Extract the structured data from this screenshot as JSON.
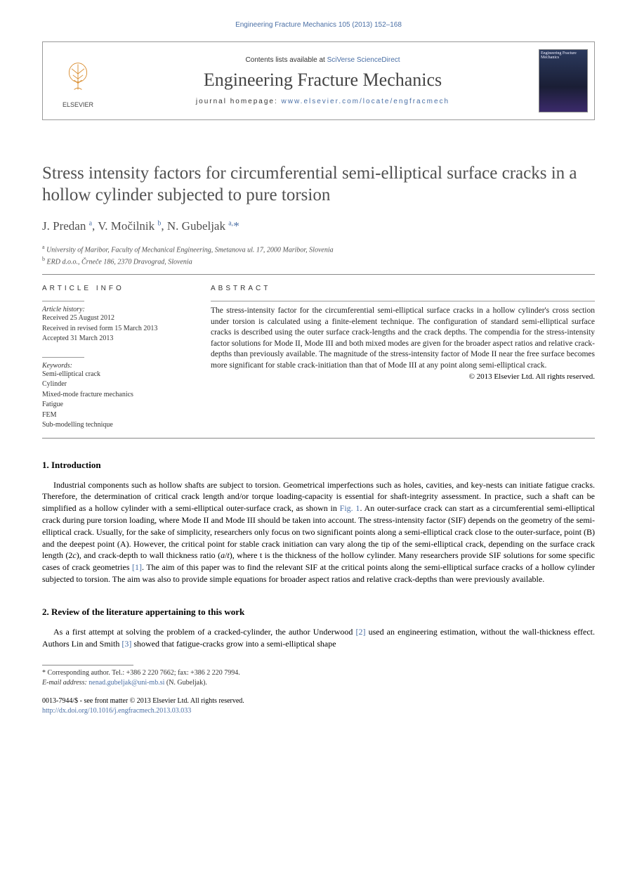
{
  "header": {
    "top_line": "Engineering Fracture Mechanics 105 (2013) 152–168",
    "contents_prefix": "Contents lists available at ",
    "contents_service": "SciVerse ScienceDirect",
    "journal_name": "Engineering Fracture Mechanics",
    "homepage_label": "journal homepage: ",
    "homepage_url": "www.elsevier.com/locate/engfracmech",
    "publisher_name": "ELSEVIER",
    "cover_small_title": "Engineering Fracture Mechanics"
  },
  "title": "Stress intensity factors for circumferential semi-elliptical surface cracks in a hollow cylinder subjected to pure torsion",
  "authors_html": "J. Predan <sup>a</sup>, V. Močilnik <sup>b</sup>, N. Gubeljak <sup>a,</sup><span class='star-sup'>*</span>",
  "affiliations": [
    "a University of Maribor, Faculty of Mechanical Engineering, Smetanova ul. 17, 2000 Maribor, Slovenia",
    "b ERD d.o.o., Črneče 186, 2370 Dravograd, Slovenia"
  ],
  "info": {
    "head": "ARTICLE INFO",
    "history_label": "Article history:",
    "history": [
      "Received 25 August 2012",
      "Received in revised form 15 March 2013",
      "Accepted 31 March 2013"
    ],
    "keywords_label": "Keywords:",
    "keywords": [
      "Semi-elliptical crack",
      "Cylinder",
      "Mixed-mode fracture mechanics",
      "Fatigue",
      "FEM",
      "Sub-modelling technique"
    ]
  },
  "abstract": {
    "head": "ABSTRACT",
    "text": "The stress-intensity factor for the circumferential semi-elliptical surface cracks in a hollow cylinder's cross section under torsion is calculated using a finite-element technique. The configuration of standard semi-elliptical surface cracks is described using the outer surface crack-lengths and the crack depths. The compendia for the stress-intensity factor solutions for Mode II, Mode III and both mixed modes are given for the broader aspect ratios and relative crack-depths than previously available. The magnitude of the stress-intensity factor of Mode II near the free surface becomes more significant for stable crack-initiation than that of Mode III at any point along semi-elliptical crack.",
    "copyright": "© 2013 Elsevier Ltd. All rights reserved."
  },
  "sections": [
    {
      "head": "1. Introduction",
      "paras": [
        "Industrial components such as hollow shafts are subject to torsion. Geometrical imperfections such as holes, cavities, and key-nests can initiate fatigue cracks. Therefore, the determination of critical crack length and/or torque loading-capacity is essential for shaft-integrity assessment. In practice, such a shaft can be simplified as a hollow cylinder with a semi-elliptical outer-surface crack, as shown in <a href='#' data-name='fig-link' data-interactable='true'>Fig. 1</a>. An outer-surface crack can start as a circumferential semi-elliptical crack during pure torsion loading, where Mode II and Mode III should be taken into account. The stress-intensity factor (SIF) depends on the geometry of the semi-elliptical crack. Usually, for the sake of simplicity, researchers only focus on two significant points along a semi-elliptical crack close to the outer-surface, point (B) and the deepest point (A). However, the critical point for stable crack initiation can vary along the tip of the semi-elliptical crack, depending on the surface crack length (2<span class='italic'>c</span>), and crack-depth to wall thickness ratio (<span class='italic'>a</span>/<span class='italic'>t</span>), where t is the thickness of the hollow cylinder. Many researchers provide SIF solutions for some specific cases of crack geometries <a href='#' data-name='ref-link' data-interactable='true'>[1]</a>. The aim of this paper was to find the relevant SIF at the critical points along the semi-elliptical surface cracks of a hollow cylinder subjected to torsion. The aim was also to provide simple equations for broader aspect ratios and relative crack-depths than were previously available."
      ]
    },
    {
      "head": "2. Review of the literature appertaining to this work",
      "paras": [
        "As a first attempt at solving the problem of a cracked-cylinder, the author Underwood <a href='#' data-name='ref-link' data-interactable='true'>[2]</a> used an engineering estimation, without the wall-thickness effect. Authors Lin and Smith <a href='#' data-name='ref-link' data-interactable='true'>[3]</a> showed that fatigue-cracks grow into a semi-elliptical shape"
      ]
    }
  ],
  "footnote": {
    "corr": "* Corresponding author. Tel.: +386 2 220 7662; fax: +386 2 220 7994.",
    "email_label": "E-mail address: ",
    "email": "nenad.gubeljak@uni-mb.si",
    "email_suffix": " (N. Gubeljak)."
  },
  "bottom": {
    "issn_line": "0013-7944/$ - see front matter © 2013 Elsevier Ltd. All rights reserved.",
    "doi": "http://dx.doi.org/10.1016/j.engfracmech.2013.03.033"
  },
  "colors": {
    "link": "#4a6fa5",
    "title_gray": "#505050"
  }
}
